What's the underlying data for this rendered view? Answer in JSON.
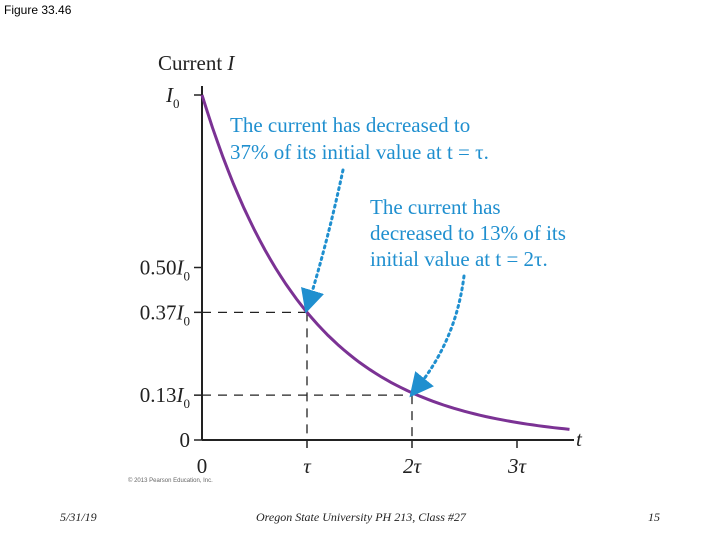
{
  "figure_label": "Figure 33.46",
  "footer": {
    "date": "5/31/19",
    "center": "Oregon State University PH 213, Class #27",
    "page": "15"
  },
  "colors": {
    "curve": "#7b3294",
    "annotation": "#1f8fcf",
    "axis": "#222222"
  },
  "chart_data": {
    "type": "line",
    "ylabel_main": "Current ",
    "ylabel_var": "I",
    "xlabel": "t",
    "y_top_label": {
      "main": "I",
      "sub": "0"
    },
    "y_ticks": [
      {
        "value": 0.5,
        "prefix": "0.50",
        "var": "I",
        "sub": "0"
      },
      {
        "value": 0.37,
        "prefix": "0.37",
        "var": "I",
        "sub": "0"
      },
      {
        "value": 0.13,
        "prefix": "0.13",
        "var": "I",
        "sub": "0"
      },
      {
        "value": 0,
        "prefix": "0",
        "var": "",
        "sub": ""
      }
    ],
    "x_ticks": [
      {
        "value": 0,
        "label": "0"
      },
      {
        "value": 1,
        "label": "τ"
      },
      {
        "value": 2,
        "label": "2τ"
      },
      {
        "value": 3,
        "label": "3τ"
      }
    ],
    "xlim": [
      0,
      3.5
    ],
    "ylim": [
      0,
      1
    ],
    "series": [
      {
        "x": [
          0,
          0.25,
          0.5,
          0.75,
          1,
          1.25,
          1.5,
          1.75,
          2,
          2.25,
          2.5,
          2.75,
          3,
          3.25,
          3.5
        ],
        "y": [
          1,
          0.78,
          0.61,
          0.47,
          0.37,
          0.29,
          0.22,
          0.17,
          0.13,
          0.11,
          0.08,
          0.06,
          0.05,
          0.04,
          0.03
        ]
      }
    ],
    "annotations": [
      {
        "lines": [
          "The current has decreased to",
          "37% of its initial value at t = τ."
        ],
        "target": [
          1,
          0.37
        ]
      },
      {
        "lines": [
          "The current has",
          "decreased to 13% of its",
          "initial value at t = 2τ."
        ],
        "target": [
          2,
          0.13
        ]
      }
    ],
    "copyright": "© 2013 Pearson Education, Inc."
  }
}
